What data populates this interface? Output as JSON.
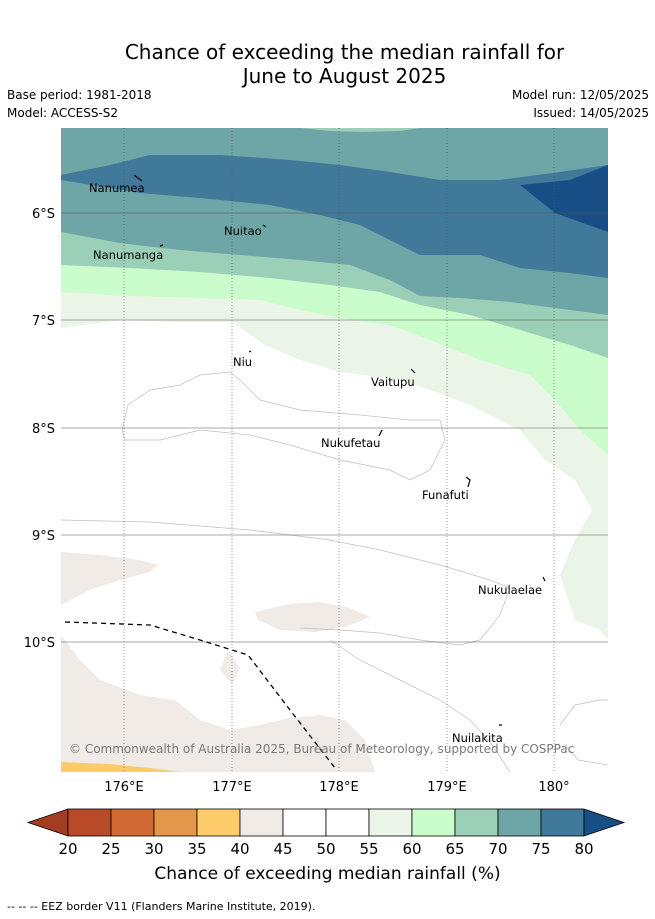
{
  "title": {
    "line1": "Chance of exceeding the median rainfall for",
    "line2": "June to August 2025"
  },
  "meta": {
    "base_period": "Base period: 1981-2018",
    "model": "Model: ACCESS-S2",
    "model_run": "Model run: 12/05/2025",
    "issued": "Issued: 14/05/2025"
  },
  "map": {
    "lat_labels": [
      "6°S",
      "7°S",
      "8°S",
      "9°S",
      "10°S"
    ],
    "lon_labels": [
      "176°E",
      "177°E",
      "178°E",
      "179°E",
      "180°"
    ],
    "places": [
      "Nanumea",
      "Nuitao",
      "Nanumanga",
      "Niu",
      "Vaitupu",
      "Nukufetau",
      "Funafuti",
      "Nukulaelae",
      "Nuilakita"
    ],
    "credit": "© Commonwealth of Australia 2025, Bureau of Meteorology, supported by COSPPac"
  },
  "colorbar": {
    "ticks": [
      "20",
      "25",
      "30",
      "35",
      "40",
      "45",
      "50",
      "55",
      "60",
      "65",
      "70",
      "75",
      "80"
    ],
    "colors": [
      "#a23d24",
      "#b84a28",
      "#d06934",
      "#e3974a",
      "#fdcb6a",
      "#f0ebe6",
      "#ffffff",
      "#ffffff",
      "#eaf5e8",
      "#cbfccb",
      "#9ccfb7",
      "#6ea5a7",
      "#41799a",
      "#174e86"
    ],
    "label": "Chance of exceeding median rainfall (%)"
  },
  "footnote": "--  --  -- EEZ border V11 (Flanders Marine Institute, 2019)."
}
